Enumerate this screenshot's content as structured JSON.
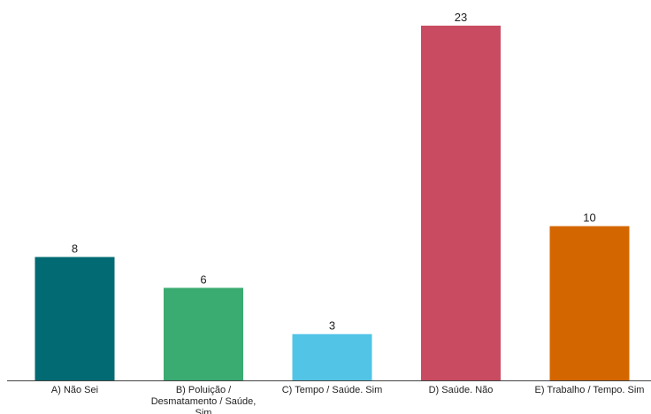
{
  "chart_data": {
    "type": "bar",
    "categories": [
      "A) Não Sei",
      "B) Poluição / Desmatamento / Saúde, Sim",
      "C) Tempo / Saúde. Sim",
      "D) Saúde. Não",
      "E) Trabalho / Tempo. Sim"
    ],
    "category_lines": [
      [
        "A) Não Sei"
      ],
      [
        "B) Poluição /",
        "Desmatamento / Saúde,",
        "Sim"
      ],
      [
        "C) Tempo / Saúde. Sim"
      ],
      [
        "D) Saúde. Não"
      ],
      [
        "E) Trabalho / Tempo. Sim"
      ]
    ],
    "values": [
      8,
      6,
      3,
      23,
      10
    ],
    "colors": [
      "#026a73",
      "#3aab71",
      "#52c4e6",
      "#c94b61",
      "#d46600"
    ],
    "title": "",
    "xlabel": "",
    "ylabel": "",
    "ylim": [
      0,
      23
    ],
    "grid": false,
    "legend": "none",
    "data_labels": true
  }
}
